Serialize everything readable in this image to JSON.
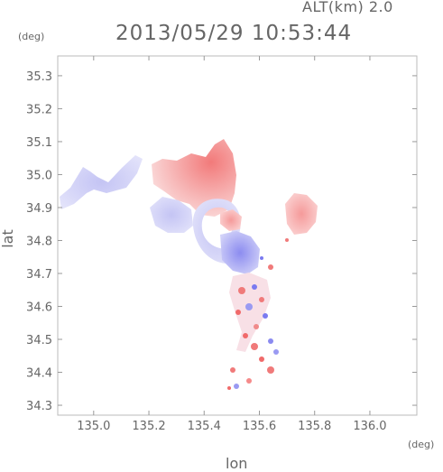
{
  "header": {
    "altitude": "ALT(km) 2.0",
    "timestamp": "2013/05/29 10:53:44"
  },
  "axes": {
    "y_unit": "(deg)",
    "x_unit": "(deg)",
    "y_label": "lat",
    "x_label": "lon",
    "x_ticks": [
      "135.0",
      "135.2",
      "135.4",
      "135.6",
      "135.8",
      "136.0"
    ],
    "y_ticks": [
      "34.3",
      "34.4",
      "34.5",
      "34.6",
      "34.7",
      "34.8",
      "34.9",
      "35.0",
      "35.1",
      "35.2",
      "35.3"
    ]
  },
  "map": {
    "x_range": [
      134.87,
      136.17
    ],
    "y_range": [
      34.27,
      35.36
    ],
    "frame_color": "#bbbbbb",
    "color_positive": "#f06a6a",
    "color_negative": "#7a7af0",
    "shading": "Doppler velocity style red (receding) / blue (approaching) echo field"
  }
}
